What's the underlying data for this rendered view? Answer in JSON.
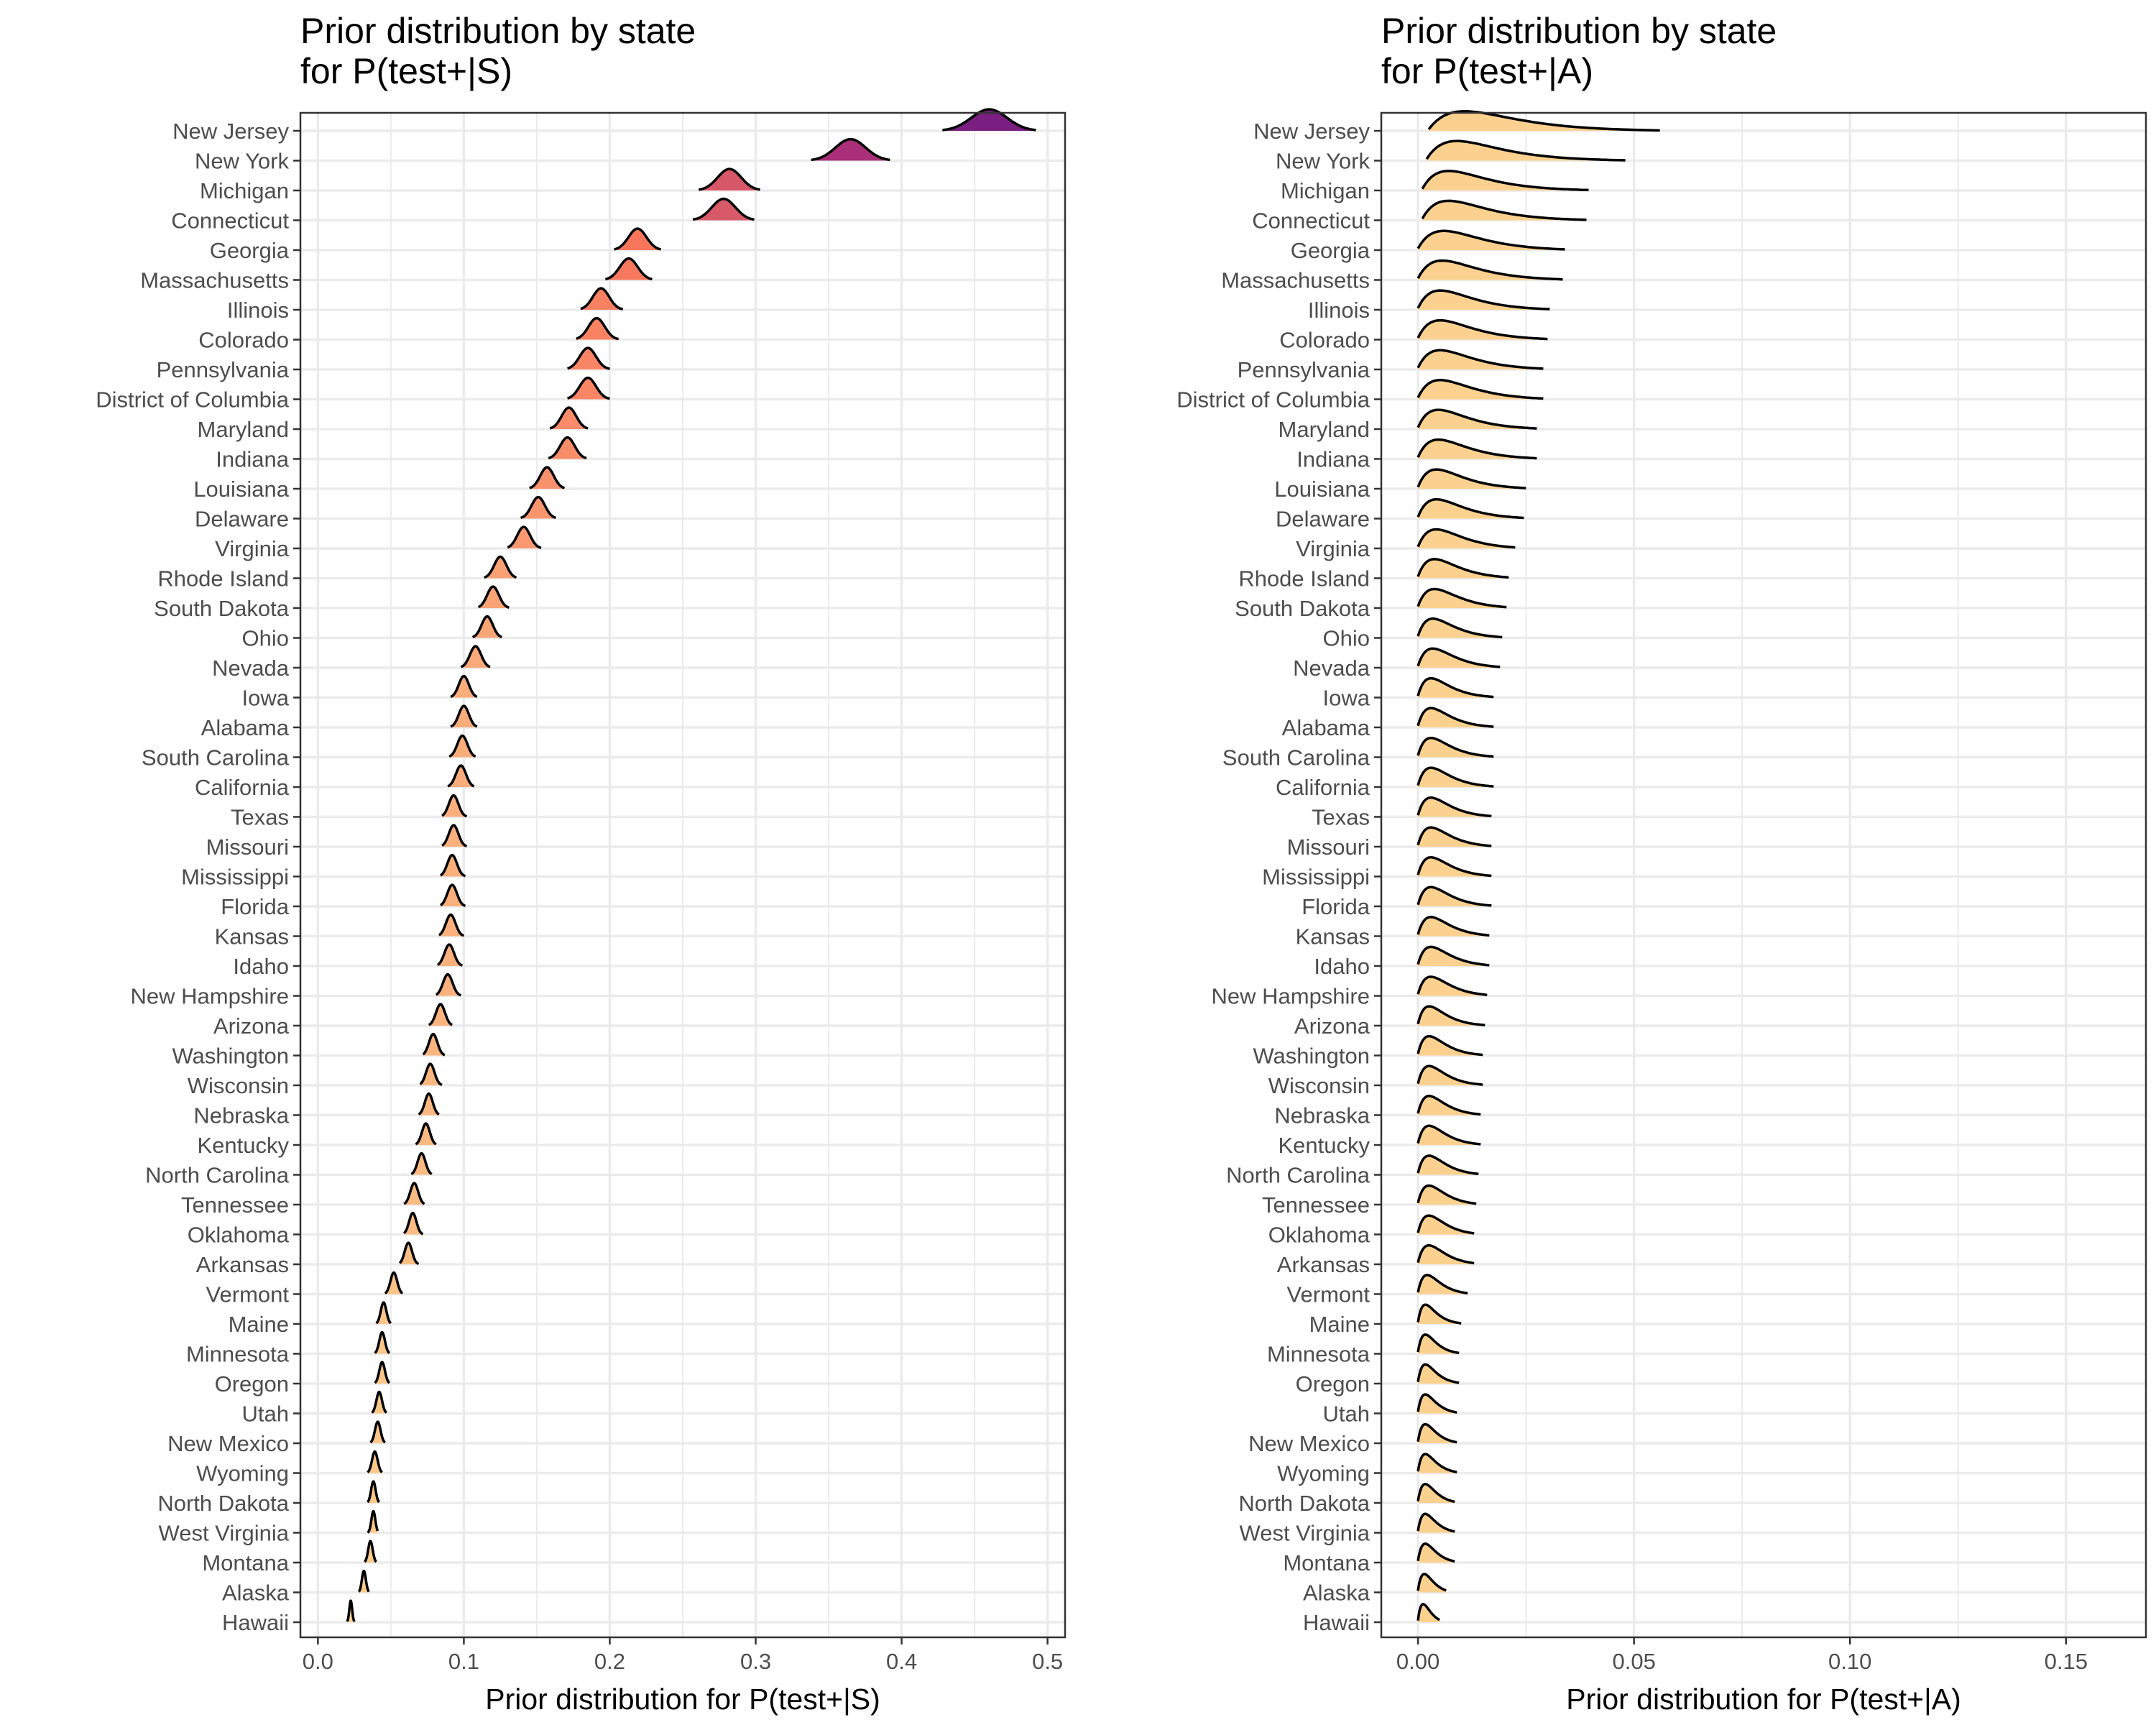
{
  "states": [
    "Hawaii",
    "Alaska",
    "Montana",
    "West Virginia",
    "North Dakota",
    "Wyoming",
    "New Mexico",
    "Utah",
    "Oregon",
    "Minnesota",
    "Maine",
    "Vermont",
    "Arkansas",
    "Oklahoma",
    "Tennessee",
    "North Carolina",
    "Kentucky",
    "Nebraska",
    "Wisconsin",
    "Washington",
    "Arizona",
    "New Hampshire",
    "Idaho",
    "Kansas",
    "Florida",
    "Mississippi",
    "Missouri",
    "Texas",
    "California",
    "South Carolina",
    "Alabama",
    "Iowa",
    "Nevada",
    "Ohio",
    "South Dakota",
    "Rhode Island",
    "Virginia",
    "Delaware",
    "Louisiana",
    "Indiana",
    "Maryland",
    "District of Columbia",
    "Pennsylvania",
    "Colorado",
    "Illinois",
    "Massachusetts",
    "Georgia",
    "Connecticut",
    "Michigan",
    "New York",
    "New Jersey"
  ],
  "colors": {
    "low": "#fcd18f",
    "mid": "#f8765c",
    "high": "#a52c7a",
    "top": "#7a1e81",
    "grid": "#ebebeb",
    "border": "#333333"
  },
  "chart_data": [
    {
      "type": "ridgeline",
      "title": "Prior distribution by state\nfor P(test+|S)",
      "xlabel": "Prior distribution for P(test+|S)",
      "ylabel": "",
      "xlim": [
        -0.012,
        0.512
      ],
      "xticks": [
        0.0,
        0.1,
        0.2,
        0.3,
        0.4,
        0.5
      ],
      "xtick_labels": [
        "0.0",
        "0.1",
        "0.2",
        "0.3",
        "0.4",
        "0.5"
      ],
      "grid": true,
      "fill": "mean-gradient",
      "series_stats": [
        {
          "state": "Hawaii",
          "center": 0.0225,
          "spread": 0.0015,
          "min": 0.02,
          "max": 0.025
        },
        {
          "state": "Alaska",
          "center": 0.0315,
          "spread": 0.0022,
          "min": 0.028,
          "max": 0.035
        },
        {
          "state": "Montana",
          "center": 0.036,
          "spread": 0.0022,
          "min": 0.032,
          "max": 0.04
        },
        {
          "state": "West Virginia",
          "center": 0.038,
          "spread": 0.0018,
          "min": 0.034,
          "max": 0.041
        },
        {
          "state": "North Dakota",
          "center": 0.038,
          "spread": 0.0018,
          "min": 0.034,
          "max": 0.042
        },
        {
          "state": "Wyoming",
          "center": 0.039,
          "spread": 0.0022,
          "min": 0.034,
          "max": 0.044
        },
        {
          "state": "New Mexico",
          "center": 0.041,
          "spread": 0.0022,
          "min": 0.036,
          "max": 0.046
        },
        {
          "state": "Utah",
          "center": 0.042,
          "spread": 0.0022,
          "min": 0.037,
          "max": 0.047
        },
        {
          "state": "Oregon",
          "center": 0.044,
          "spread": 0.0022,
          "min": 0.039,
          "max": 0.049
        },
        {
          "state": "Minnesota",
          "center": 0.044,
          "spread": 0.0022,
          "min": 0.039,
          "max": 0.049
        },
        {
          "state": "Maine",
          "center": 0.045,
          "spread": 0.0022,
          "min": 0.04,
          "max": 0.05
        },
        {
          "state": "Vermont",
          "center": 0.052,
          "spread": 0.0025,
          "min": 0.046,
          "max": 0.058
        },
        {
          "state": "Arkansas",
          "center": 0.062,
          "spread": 0.0028,
          "min": 0.056,
          "max": 0.069
        },
        {
          "state": "Oklahoma",
          "center": 0.065,
          "spread": 0.0028,
          "min": 0.059,
          "max": 0.072
        },
        {
          "state": "Tennessee",
          "center": 0.066,
          "spread": 0.0028,
          "min": 0.059,
          "max": 0.073
        },
        {
          "state": "North Carolina",
          "center": 0.071,
          "spread": 0.0028,
          "min": 0.064,
          "max": 0.078
        },
        {
          "state": "Kentucky",
          "center": 0.074,
          "spread": 0.0028,
          "min": 0.067,
          "max": 0.081
        },
        {
          "state": "Nebraska",
          "center": 0.076,
          "spread": 0.0028,
          "min": 0.069,
          "max": 0.083
        },
        {
          "state": "Wisconsin",
          "center": 0.077,
          "spread": 0.003,
          "min": 0.07,
          "max": 0.085
        },
        {
          "state": "Washington",
          "center": 0.079,
          "spread": 0.003,
          "min": 0.072,
          "max": 0.087
        },
        {
          "state": "Arizona",
          "center": 0.084,
          "spread": 0.0032,
          "min": 0.076,
          "max": 0.092
        },
        {
          "state": "New Hampshire",
          "center": 0.089,
          "spread": 0.0032,
          "min": 0.081,
          "max": 0.098
        },
        {
          "state": "Idaho",
          "center": 0.09,
          "spread": 0.0032,
          "min": 0.082,
          "max": 0.099
        },
        {
          "state": "Kansas",
          "center": 0.091,
          "spread": 0.0032,
          "min": 0.083,
          "max": 0.1
        },
        {
          "state": "Florida",
          "center": 0.092,
          "spread": 0.0032,
          "min": 0.084,
          "max": 0.101
        },
        {
          "state": "Mississippi",
          "center": 0.092,
          "spread": 0.0032,
          "min": 0.084,
          "max": 0.101
        },
        {
          "state": "Missouri",
          "center": 0.093,
          "spread": 0.0032,
          "min": 0.085,
          "max": 0.102
        },
        {
          "state": "Texas",
          "center": 0.093,
          "spread": 0.0032,
          "min": 0.085,
          "max": 0.102
        },
        {
          "state": "California",
          "center": 0.098,
          "spread": 0.0034,
          "min": 0.089,
          "max": 0.107
        },
        {
          "state": "South Carolina",
          "center": 0.099,
          "spread": 0.0034,
          "min": 0.09,
          "max": 0.108
        },
        {
          "state": "Alabama",
          "center": 0.1,
          "spread": 0.0034,
          "min": 0.091,
          "max": 0.109
        },
        {
          "state": "Iowa",
          "center": 0.1,
          "spread": 0.0034,
          "min": 0.091,
          "max": 0.109
        },
        {
          "state": "Nevada",
          "center": 0.108,
          "spread": 0.0036,
          "min": 0.098,
          "max": 0.118
        },
        {
          "state": "Ohio",
          "center": 0.116,
          "spread": 0.0038,
          "min": 0.106,
          "max": 0.126
        },
        {
          "state": "South Dakota",
          "center": 0.12,
          "spread": 0.0038,
          "min": 0.11,
          "max": 0.131
        },
        {
          "state": "Rhode Island",
          "center": 0.125,
          "spread": 0.004,
          "min": 0.114,
          "max": 0.136
        },
        {
          "state": "Virginia",
          "center": 0.141,
          "spread": 0.0042,
          "min": 0.13,
          "max": 0.153
        },
        {
          "state": "Delaware",
          "center": 0.151,
          "spread": 0.0045,
          "min": 0.139,
          "max": 0.163
        },
        {
          "state": "Louisiana",
          "center": 0.157,
          "spread": 0.0045,
          "min": 0.145,
          "max": 0.169
        },
        {
          "state": "Indiana",
          "center": 0.171,
          "spread": 0.005,
          "min": 0.158,
          "max": 0.184
        },
        {
          "state": "Maryland",
          "center": 0.172,
          "spread": 0.005,
          "min": 0.159,
          "max": 0.185
        },
        {
          "state": "District of Columbia",
          "center": 0.185,
          "spread": 0.0055,
          "min": 0.171,
          "max": 0.2
        },
        {
          "state": "Pennsylvania",
          "center": 0.185,
          "spread": 0.0055,
          "min": 0.171,
          "max": 0.2
        },
        {
          "state": "Colorado",
          "center": 0.191,
          "spread": 0.0055,
          "min": 0.177,
          "max": 0.206
        },
        {
          "state": "Illinois",
          "center": 0.194,
          "spread": 0.0055,
          "min": 0.18,
          "max": 0.209
        },
        {
          "state": "Massachusetts",
          "center": 0.213,
          "spread": 0.006,
          "min": 0.197,
          "max": 0.229
        },
        {
          "state": "Georgia",
          "center": 0.219,
          "spread": 0.006,
          "min": 0.203,
          "max": 0.235
        },
        {
          "state": "Connecticut",
          "center": 0.278,
          "spread": 0.008,
          "min": 0.257,
          "max": 0.299
        },
        {
          "state": "Michigan",
          "center": 0.282,
          "spread": 0.008,
          "min": 0.261,
          "max": 0.303
        },
        {
          "state": "New York",
          "center": 0.365,
          "spread": 0.01,
          "min": 0.338,
          "max": 0.392
        },
        {
          "state": "New Jersey",
          "center": 0.46,
          "spread": 0.012,
          "min": 0.428,
          "max": 0.492
        }
      ]
    },
    {
      "type": "ridgeline",
      "title": "Prior distribution by state\nfor P(test+|A)",
      "xlabel": "Prior distribution for P(test+|A)",
      "ylabel": "",
      "xlim": [
        -0.0085,
        0.1685
      ],
      "xticks": [
        0.0,
        0.05,
        0.1,
        0.15
      ],
      "xtick_labels": [
        "0.00",
        "0.05",
        "0.10",
        "0.15"
      ],
      "grid": true,
      "fill": "#fcd18f",
      "series_stats": [
        {
          "state": "Hawaii",
          "peak": 0.0015,
          "min": 0.0,
          "max": 0.005
        },
        {
          "state": "Alaska",
          "peak": 0.0018,
          "min": 0.0,
          "max": 0.0065
        },
        {
          "state": "Montana",
          "peak": 0.002,
          "min": 0.0,
          "max": 0.0085
        },
        {
          "state": "West Virginia",
          "peak": 0.002,
          "min": 0.0,
          "max": 0.0085
        },
        {
          "state": "North Dakota",
          "peak": 0.002,
          "min": 0.0,
          "max": 0.0085
        },
        {
          "state": "Wyoming",
          "peak": 0.002,
          "min": 0.0,
          "max": 0.009
        },
        {
          "state": "New Mexico",
          "peak": 0.002,
          "min": 0.0,
          "max": 0.009
        },
        {
          "state": "Utah",
          "peak": 0.002,
          "min": 0.0,
          "max": 0.009
        },
        {
          "state": "Oregon",
          "peak": 0.002,
          "min": 0.0,
          "max": 0.0095
        },
        {
          "state": "Minnesota",
          "peak": 0.002,
          "min": 0.0,
          "max": 0.0095
        },
        {
          "state": "Maine",
          "peak": 0.002,
          "min": 0.0,
          "max": 0.01
        },
        {
          "state": "Vermont",
          "peak": 0.0025,
          "min": 0.0,
          "max": 0.0115
        },
        {
          "state": "Arkansas",
          "peak": 0.003,
          "min": 0.0,
          "max": 0.013
        },
        {
          "state": "Oklahoma",
          "peak": 0.003,
          "min": 0.0,
          "max": 0.013
        },
        {
          "state": "Tennessee",
          "peak": 0.003,
          "min": 0.0,
          "max": 0.0135
        },
        {
          "state": "North Carolina",
          "peak": 0.003,
          "min": 0.0,
          "max": 0.014
        },
        {
          "state": "Kentucky",
          "peak": 0.003,
          "min": 0.0,
          "max": 0.0145
        },
        {
          "state": "Nebraska",
          "peak": 0.003,
          "min": 0.0,
          "max": 0.0145
        },
        {
          "state": "Wisconsin",
          "peak": 0.003,
          "min": 0.0,
          "max": 0.015
        },
        {
          "state": "Washington",
          "peak": 0.003,
          "min": 0.0,
          "max": 0.015
        },
        {
          "state": "Arizona",
          "peak": 0.003,
          "min": 0.0,
          "max": 0.0155
        },
        {
          "state": "New Hampshire",
          "peak": 0.0035,
          "min": 0.0,
          "max": 0.016
        },
        {
          "state": "Idaho",
          "peak": 0.0035,
          "min": 0.0,
          "max": 0.0165
        },
        {
          "state": "Kansas",
          "peak": 0.0035,
          "min": 0.0,
          "max": 0.0165
        },
        {
          "state": "Florida",
          "peak": 0.0035,
          "min": 0.0,
          "max": 0.017
        },
        {
          "state": "Mississippi",
          "peak": 0.0035,
          "min": 0.0,
          "max": 0.017
        },
        {
          "state": "Missouri",
          "peak": 0.0035,
          "min": 0.0,
          "max": 0.017
        },
        {
          "state": "Texas",
          "peak": 0.0035,
          "min": 0.0,
          "max": 0.017
        },
        {
          "state": "California",
          "peak": 0.0035,
          "min": 0.0,
          "max": 0.0175
        },
        {
          "state": "South Carolina",
          "peak": 0.0035,
          "min": 0.0,
          "max": 0.0175
        },
        {
          "state": "Alabama",
          "peak": 0.0035,
          "min": 0.0,
          "max": 0.0175
        },
        {
          "state": "Iowa",
          "peak": 0.0035,
          "min": 0.0,
          "max": 0.0175
        },
        {
          "state": "Nevada",
          "peak": 0.004,
          "min": 0.0,
          "max": 0.019
        },
        {
          "state": "Ohio",
          "peak": 0.004,
          "min": 0.0,
          "max": 0.0195
        },
        {
          "state": "South Dakota",
          "peak": 0.0045,
          "min": 0.0,
          "max": 0.0205
        },
        {
          "state": "Rhode Island",
          "peak": 0.0045,
          "min": 0.0,
          "max": 0.021
        },
        {
          "state": "Virginia",
          "peak": 0.005,
          "min": 0.0,
          "max": 0.0225
        },
        {
          "state": "Delaware",
          "peak": 0.005,
          "min": 0.0,
          "max": 0.0245
        },
        {
          "state": "Louisiana",
          "peak": 0.005,
          "min": 0.0,
          "max": 0.025
        },
        {
          "state": "Indiana",
          "peak": 0.0055,
          "min": 0.0,
          "max": 0.0275
        },
        {
          "state": "Maryland",
          "peak": 0.0055,
          "min": 0.0,
          "max": 0.0275
        },
        {
          "state": "District of Columbia",
          "peak": 0.006,
          "min": 0.0,
          "max": 0.029
        },
        {
          "state": "Pennsylvania",
          "peak": 0.006,
          "min": 0.0,
          "max": 0.029
        },
        {
          "state": "Colorado",
          "peak": 0.006,
          "min": 0.0,
          "max": 0.03
        },
        {
          "state": "Illinois",
          "peak": 0.006,
          "min": 0.0,
          "max": 0.0305
        },
        {
          "state": "Massachusetts",
          "peak": 0.0065,
          "min": 0.0,
          "max": 0.0335
        },
        {
          "state": "Georgia",
          "peak": 0.007,
          "min": 0.0,
          "max": 0.034
        },
        {
          "state": "Connecticut",
          "peak": 0.008,
          "min": 0.001,
          "max": 0.039
        },
        {
          "state": "Michigan",
          "peak": 0.008,
          "min": 0.001,
          "max": 0.0395
        },
        {
          "state": "New York",
          "peak": 0.01,
          "min": 0.002,
          "max": 0.048
        },
        {
          "state": "New Jersey",
          "peak": 0.012,
          "min": 0.0025,
          "max": 0.056
        }
      ]
    }
  ]
}
